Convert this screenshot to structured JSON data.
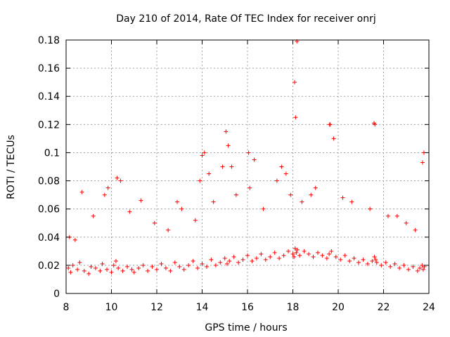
{
  "chart_data": {
    "type": "scatter",
    "title": "Day 210 of 2014, Rate Of TEC Index for receiver onrj",
    "xlabel": "GPS time / hours",
    "ylabel": "ROTI / TECUs",
    "xlim": [
      8,
      24
    ],
    "ylim": [
      0,
      0.18
    ],
    "xticks": [
      8,
      10,
      12,
      14,
      16,
      18,
      20,
      22,
      24
    ],
    "yticks": [
      0,
      0.02,
      0.04,
      0.06,
      0.08,
      0.1,
      0.12,
      0.14,
      0.16,
      0.18
    ],
    "xtick_labels": [
      "8",
      "10",
      "12",
      "14",
      "16",
      "18",
      "20",
      "22",
      "24"
    ],
    "ytick_labels": [
      "0",
      "0.02",
      "0.04",
      "0.06",
      "0.08",
      "0.1",
      "0.12",
      "0.14",
      "0.16",
      "0.18"
    ],
    "grid": true,
    "marker": "plus",
    "color": "#ff0000",
    "series": [
      {
        "name": "ROTI",
        "x": [
          8.1,
          8.2,
          8.3,
          8.5,
          8.6,
          8.8,
          9.0,
          9.1,
          9.3,
          9.5,
          9.6,
          9.8,
          10.0,
          10.1,
          10.2,
          10.3,
          10.5,
          10.7,
          10.9,
          11.0,
          11.2,
          11.4,
          11.6,
          11.8,
          12.0,
          12.2,
          12.4,
          12.6,
          12.8,
          13.0,
          13.2,
          13.4,
          13.6,
          13.8,
          14.0,
          14.2,
          14.4,
          14.6,
          14.8,
          15.0,
          15.1,
          15.2,
          15.4,
          15.6,
          15.8,
          16.0,
          16.2,
          16.4,
          16.6,
          16.8,
          17.0,
          17.2,
          17.4,
          17.6,
          17.8,
          18.0,
          18.05,
          18.1,
          18.15,
          18.2,
          18.3,
          18.5,
          18.7,
          18.9,
          19.1,
          19.3,
          19.5,
          19.6,
          19.7,
          19.9,
          20.1,
          20.3,
          20.5,
          20.7,
          20.9,
          21.1,
          21.3,
          21.5,
          21.6,
          21.65,
          21.7,
          21.9,
          22.1,
          22.3,
          22.5,
          22.7,
          22.9,
          23.1,
          23.3,
          23.5,
          23.6,
          23.7,
          23.75,
          23.8,
          8.15,
          8.4,
          8.7,
          9.2,
          9.7,
          10.4,
          10.8,
          11.3,
          11.9,
          12.5,
          13.1,
          13.7,
          14.3,
          14.9,
          15.5,
          16.1,
          16.7,
          17.3,
          17.9,
          18.4,
          19.0,
          19.8,
          20.6,
          21.4,
          22.2,
          23.0,
          23.4,
          14.1,
          15.05,
          16.05,
          17.5,
          18.12,
          19.65,
          21.62,
          23.78,
          12.9,
          13.9,
          10.25,
          9.85,
          15.3,
          16.3,
          17.7,
          18.8,
          20.2,
          22.6,
          14.5,
          18.08,
          18.18,
          19.62,
          21.58,
          23.72,
          14.0,
          15.15
        ],
        "y": [
          0.018,
          0.015,
          0.02,
          0.017,
          0.022,
          0.016,
          0.014,
          0.019,
          0.018,
          0.016,
          0.021,
          0.017,
          0.015,
          0.02,
          0.023,
          0.018,
          0.016,
          0.019,
          0.017,
          0.015,
          0.018,
          0.02,
          0.016,
          0.019,
          0.017,
          0.021,
          0.018,
          0.016,
          0.022,
          0.019,
          0.017,
          0.02,
          0.023,
          0.018,
          0.021,
          0.019,
          0.024,
          0.02,
          0.022,
          0.025,
          0.021,
          0.023,
          0.026,
          0.022,
          0.024,
          0.027,
          0.023,
          0.025,
          0.028,
          0.024,
          0.026,
          0.029,
          0.025,
          0.027,
          0.03,
          0.028,
          0.026,
          0.032,
          0.029,
          0.031,
          0.027,
          0.03,
          0.028,
          0.026,
          0.029,
          0.027,
          0.025,
          0.028,
          0.03,
          0.026,
          0.024,
          0.027,
          0.023,
          0.025,
          0.022,
          0.024,
          0.021,
          0.023,
          0.026,
          0.024,
          0.022,
          0.02,
          0.022,
          0.019,
          0.021,
          0.018,
          0.02,
          0.017,
          0.019,
          0.016,
          0.018,
          0.02,
          0.017,
          0.019,
          0.04,
          0.038,
          0.072,
          0.055,
          0.07,
          0.08,
          0.058,
          0.066,
          0.05,
          0.045,
          0.06,
          0.052,
          0.085,
          0.09,
          0.07,
          0.075,
          0.06,
          0.08,
          0.07,
          0.065,
          0.075,
          0.11,
          0.065,
          0.06,
          0.055,
          0.05,
          0.045,
          0.1,
          0.115,
          0.1,
          0.09,
          0.125,
          0.12,
          0.12,
          0.1,
          0.065,
          0.08,
          0.082,
          0.075,
          0.09,
          0.095,
          0.085,
          0.07,
          0.068,
          0.055,
          0.065,
          0.15,
          0.179,
          0.12,
          0.121,
          0.093,
          0.098,
          0.105
        ]
      }
    ]
  }
}
